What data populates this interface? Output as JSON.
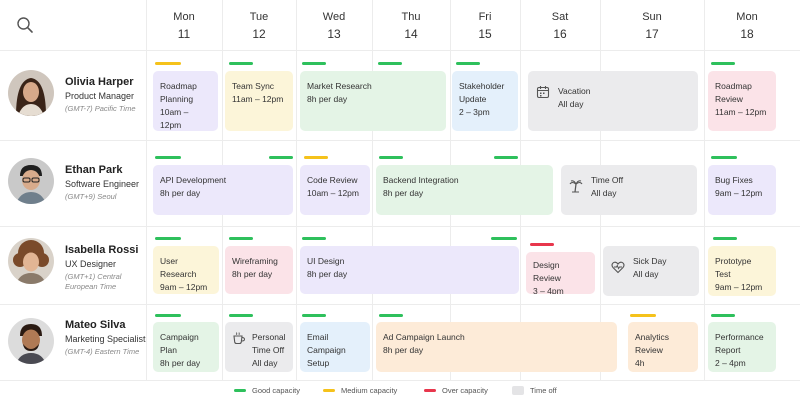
{
  "days": [
    {
      "name": "Mon",
      "num": "11"
    },
    {
      "name": "Tue",
      "num": "12"
    },
    {
      "name": "Wed",
      "num": "13"
    },
    {
      "name": "Thu",
      "num": "14"
    },
    {
      "name": "Fri",
      "num": "15"
    },
    {
      "name": "Sat",
      "num": "16"
    },
    {
      "name": "Sun",
      "num": "17"
    },
    {
      "name": "Mon",
      "num": "18"
    }
  ],
  "people": [
    {
      "name": "Olivia Harper",
      "role": "Product Manager",
      "tz": "(GMT-7) Pacific Time"
    },
    {
      "name": "Ethan Park",
      "role": "Software Engineer",
      "tz": "(GMT+9) Seoul"
    },
    {
      "name": "Isabella Rossi",
      "role": "UX Designer",
      "tz": "(GMT+1) Central European Time"
    },
    {
      "name": "Mateo Silva",
      "role": "Marketing Specialist",
      "tz": "(GMT-4) Eastern Time"
    }
  ],
  "events": {
    "olivia": [
      {
        "title": "Roadmap Planning",
        "time": "10am – 12pm",
        "color": "#ece8fb"
      },
      {
        "title": "Team Sync",
        "time": "11am – 12pm",
        "color": "#fcf5d9"
      },
      {
        "title": "Market Research",
        "time": "8h per day",
        "color": "#e4f4e6"
      },
      {
        "title": "Stakeholder Update",
        "time": "2 – 3pm",
        "color": "#e4f0fb"
      },
      {
        "title": "Vacation",
        "time": "All day",
        "icon": "calendar-icon"
      },
      {
        "title": "Roadmap Review",
        "time": "11am – 12pm",
        "color": "#fbe3e8"
      }
    ],
    "ethan": [
      {
        "title": "API Development",
        "time": "8h per day",
        "color": "#ece8fb"
      },
      {
        "title": "Code Review",
        "time": "10am – 12pm",
        "color": "#ece8fb"
      },
      {
        "title": "Backend Integration",
        "time": "8h per day",
        "color": "#e4f4e6"
      },
      {
        "title": "Time Off",
        "time": "All day",
        "icon": "palm-tree-icon"
      },
      {
        "title": "Bug Fixes",
        "time": "9am – 12pm",
        "color": "#ece8fb"
      }
    ],
    "isabella": [
      {
        "title": "User Research",
        "time": "9am – 12pm",
        "color": "#fcf5d9"
      },
      {
        "title": "Wireframing",
        "time": "8h per day",
        "color": "#fbe3e8"
      },
      {
        "title": "UI Design",
        "time": "8h per day",
        "color": "#ece8fb"
      },
      {
        "title": "Design Review",
        "time": "3 – 4pm",
        "color": "#fbe3e8"
      },
      {
        "title": "Sick Day",
        "time": "All day",
        "icon": "heart-pulse-icon"
      },
      {
        "title": "Prototype Test",
        "time": "9am – 12pm",
        "color": "#fcf5d9"
      }
    ],
    "mateo": [
      {
        "title": "Campaign Plan",
        "time": "8h per day",
        "color": "#e4f4e6"
      },
      {
        "title": "Personal Time Off",
        "time": "All day",
        "icon": "coffee-icon"
      },
      {
        "title": "Email Campaign Setup",
        "time": "4h",
        "color": "#e4f0fb"
      },
      {
        "title": "Ad Campaign Launch",
        "time": "8h per day",
        "color": "#fdebd8"
      },
      {
        "title": "Analytics Review",
        "time": "4h",
        "color": "#fdebd8"
      },
      {
        "title": "Performance Report",
        "time": "2 – 4pm",
        "color": "#e4f4e6"
      }
    ]
  },
  "legend": {
    "good": "Good capacity",
    "medium": "Medium capacity",
    "over": "Over capacity",
    "timeoff": "Time off"
  },
  "colors": {
    "good": "#2ec05c",
    "medium": "#f5c21b",
    "over": "#e8364c",
    "timeoff": "#ebebed"
  }
}
